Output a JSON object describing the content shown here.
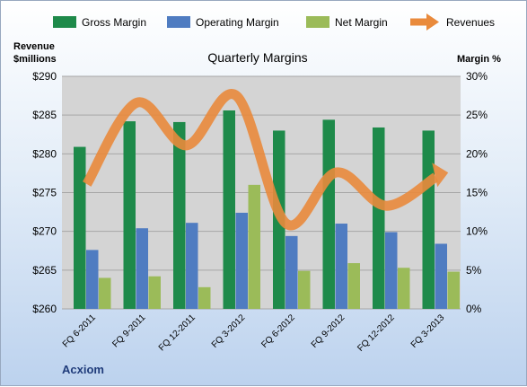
{
  "chart_data": {
    "type": "bar",
    "title": "Quarterly Margins",
    "categories": [
      "FQ 6-2011",
      "FQ 9-2011",
      "FQ 12-2011",
      "FQ 3-2012",
      "FQ 6-2012",
      "FQ 9-2012",
      "FQ 12-2012",
      "FQ 3-2013"
    ],
    "series": [
      {
        "name": "Gross Margin",
        "axis": "right",
        "type": "bar",
        "color": "#1e8a4a",
        "values": [
          20.9,
          24.2,
          24.1,
          25.6,
          23.0,
          24.4,
          23.4,
          23.0
        ]
      },
      {
        "name": "Operating Margin",
        "axis": "right",
        "type": "bar",
        "color": "#4f7cc1",
        "values": [
          7.6,
          10.4,
          11.1,
          12.4,
          9.4,
          11.0,
          9.9,
          8.4
        ]
      },
      {
        "name": "Net Margin",
        "axis": "right",
        "type": "bar",
        "color": "#9bbb59",
        "values": [
          4.0,
          4.2,
          2.8,
          16.0,
          4.9,
          5.9,
          5.3,
          4.8
        ]
      },
      {
        "name": "Revenues",
        "axis": "left",
        "type": "line",
        "color": "#e98a3c",
        "values": [
          276.1,
          286.6,
          281.1,
          287.5,
          271.0,
          277.6,
          273.3,
          277.0
        ]
      }
    ],
    "ylabel_left": "Revenue\n$millions",
    "ylabel_left_lines": [
      "Revenue",
      "$millions"
    ],
    "ylim_left": [
      260,
      290
    ],
    "yticks_left": [
      260,
      265,
      270,
      275,
      280,
      285,
      290
    ],
    "ytick_labels_left": [
      "$260",
      "$265",
      "$270",
      "$275",
      "$280",
      "$285",
      "$290"
    ],
    "ylabel_right": "Margin %",
    "ylim_right": [
      0,
      30
    ],
    "yticks_right": [
      0,
      5,
      10,
      15,
      20,
      25,
      30
    ],
    "ytick_labels_right": [
      "0%",
      "5%",
      "10%",
      "15%",
      "20%",
      "25%",
      "30%"
    ],
    "legend": "top",
    "grid": true,
    "brand": "Acxiom"
  }
}
